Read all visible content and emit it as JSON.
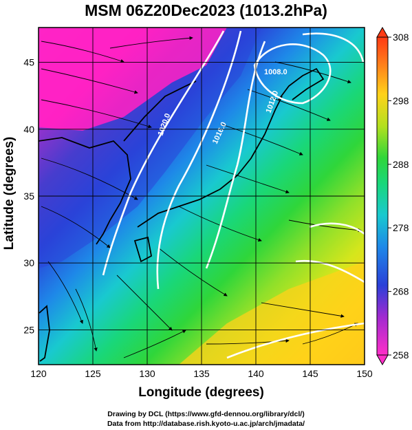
{
  "title": "MSM 06Z20Dec2023 (1013.2hPa)",
  "xlabel": "Longitude (degrees)",
  "ylabel": "Latitude  (degrees)",
  "credits": [
    "Drawing by DCL (https://www.gfd-dennou.org/library/dcl/)",
    "Data from http://database.rish.kyoto-u.ac.jp/arch/jmadata/"
  ],
  "map": {
    "lon_range": [
      120,
      150
    ],
    "lat_range": [
      22.4,
      47.6
    ],
    "lon_ticks": [
      "120",
      "125",
      "130",
      "135",
      "140",
      "145",
      "150"
    ],
    "lat_ticks": [
      "25",
      "30",
      "35",
      "40",
      "45"
    ],
    "grid": true
  },
  "colorbar": {
    "range": [
      258,
      308
    ],
    "ticks": [
      "308",
      "298",
      "288",
      "278",
      "268",
      "258"
    ]
  },
  "contour_labels": [
    "1008.0",
    "1012.0",
    "1016.0",
    "1020.0"
  ]
}
